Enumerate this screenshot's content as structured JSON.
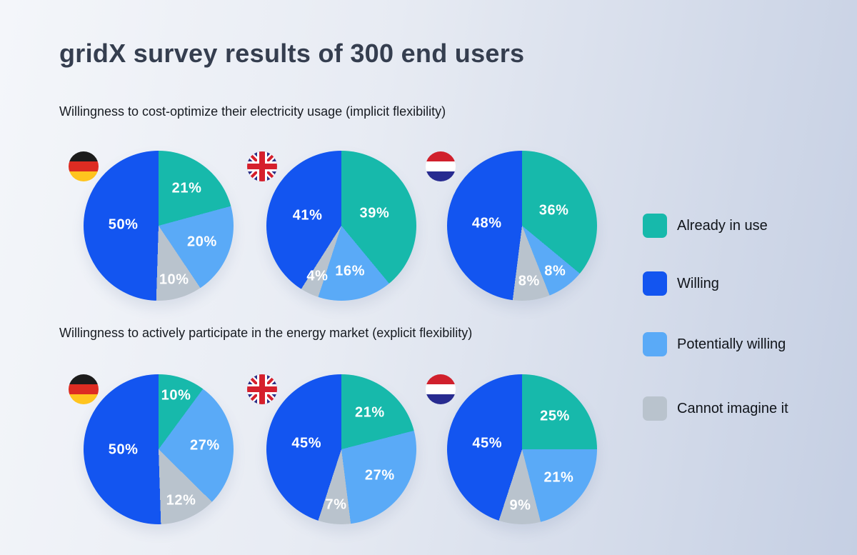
{
  "title": "gridX survey results of 300 end users",
  "background": {
    "gradient_from": "#f4f6fa",
    "gradient_to": "#c5cfe3"
  },
  "title_color": "#353e4f",
  "body_text_color": "#171b21",
  "pie_label_color": "#ffffff",
  "chart_data": {
    "type": "pie",
    "title": "gridX survey results of 300 end users",
    "legend_position": "right",
    "value_suffix": "%",
    "legend": [
      {
        "label": "Already in use",
        "color": "#17b9ab"
      },
      {
        "label": "Willing",
        "color": "#1355f0"
      },
      {
        "label": "Potentially willing",
        "color": "#5aaaf7"
      },
      {
        "label": "Cannot imagine it",
        "color": "#b9c3cd"
      }
    ],
    "slice_draw_order": [
      "Already in use",
      "Potentially willing",
      "Cannot imagine it",
      "Willing"
    ],
    "groups": [
      {
        "label": "Willingness to cost-optimize their electricity usage (implicit flexibility)",
        "pies": [
          {
            "country": "Germany",
            "flag": "germany-flag-icon",
            "slices": [
              {
                "label": "Already in use",
                "value": 21
              },
              {
                "label": "Potentially willing",
                "value": 20
              },
              {
                "label": "Cannot imagine it",
                "value": 10
              },
              {
                "label": "Willing",
                "value": 50
              }
            ]
          },
          {
            "country": "United Kingdom",
            "flag": "uk-flag-icon",
            "slices": [
              {
                "label": "Already in use",
                "value": 39
              },
              {
                "label": "Potentially willing",
                "value": 16
              },
              {
                "label": "Cannot imagine it",
                "value": 4
              },
              {
                "label": "Willing",
                "value": 41
              }
            ]
          },
          {
            "country": "Netherlands",
            "flag": "netherlands-flag-icon",
            "slices": [
              {
                "label": "Already in use",
                "value": 36
              },
              {
                "label": "Potentially willing",
                "value": 8
              },
              {
                "label": "Cannot imagine it",
                "value": 8
              },
              {
                "label": "Willing",
                "value": 48
              }
            ]
          }
        ]
      },
      {
        "label": "Willingness to actively participate in the energy market (explicit flexibility)",
        "pies": [
          {
            "country": "Germany",
            "flag": "germany-flag-icon",
            "slices": [
              {
                "label": "Already in use",
                "value": 10
              },
              {
                "label": "Potentially willing",
                "value": 27
              },
              {
                "label": "Cannot imagine it",
                "value": 12
              },
              {
                "label": "Willing",
                "value": 50
              }
            ]
          },
          {
            "country": "United Kingdom",
            "flag": "uk-flag-icon",
            "slices": [
              {
                "label": "Already in use",
                "value": 21
              },
              {
                "label": "Potentially willing",
                "value": 27
              },
              {
                "label": "Cannot imagine it",
                "value": 7
              },
              {
                "label": "Willing",
                "value": 45
              }
            ]
          },
          {
            "country": "Netherlands",
            "flag": "netherlands-flag-icon",
            "slices": [
              {
                "label": "Already in use",
                "value": 25
              },
              {
                "label": "Potentially willing",
                "value": 21
              },
              {
                "label": "Cannot imagine it",
                "value": 9
              },
              {
                "label": "Willing",
                "value": 45
              }
            ]
          }
        ]
      }
    ],
    "flag_colors": {
      "germany": {
        "black": "#1c1c1c",
        "red": "#dd2c22",
        "gold": "#ffc41e"
      },
      "uk": {
        "navy": "#2b2f87",
        "white": "#ffffff",
        "red": "#d6202c"
      },
      "netherlands": {
        "red": "#d0202c",
        "white": "#ffffff",
        "navy": "#272b90"
      }
    }
  }
}
